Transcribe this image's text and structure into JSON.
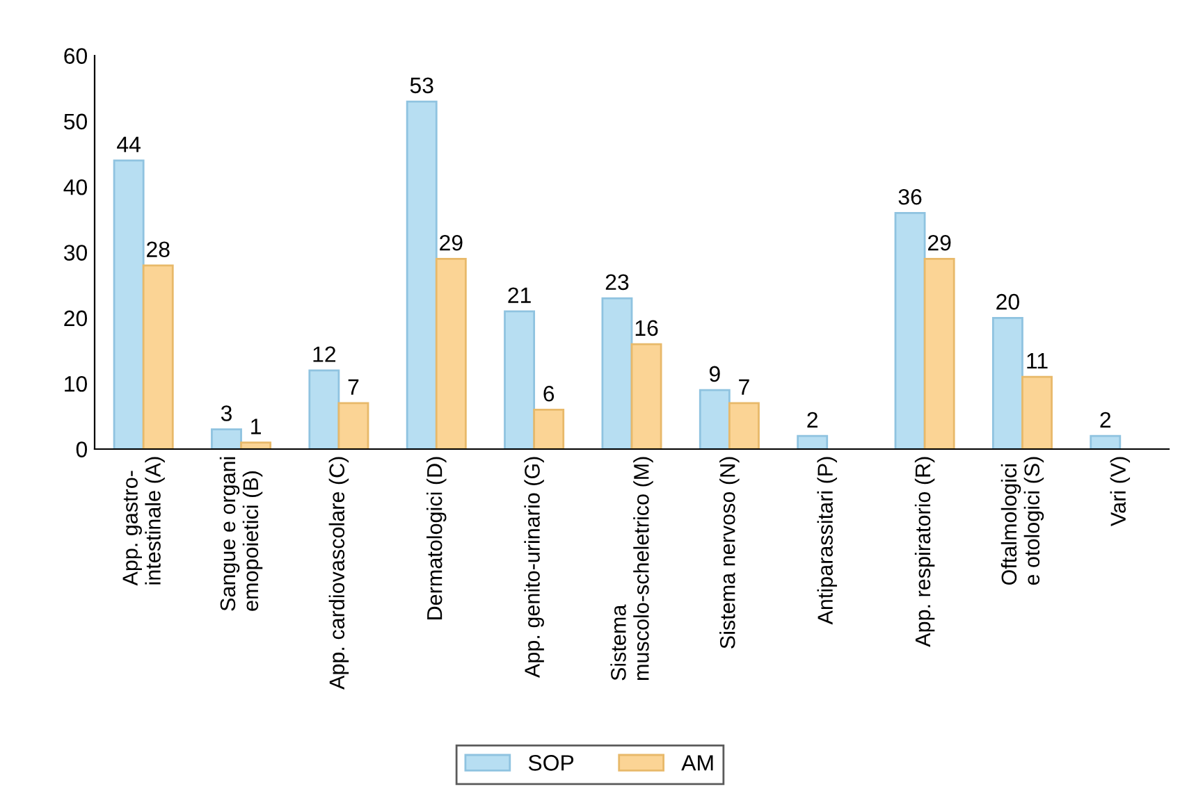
{
  "chart_data": {
    "type": "bar",
    "categories": [
      "App. gastro-\nintestinale (A)",
      "Sangue e organi\nemopoietici (B)",
      "App. cardiovascolare (C)",
      "Dermatologici (D)",
      "App. genito-urinario (G)",
      "Sistema\nmuscolo-scheletrico (M)",
      "Sistema nervoso (N)",
      "Antiparassitari (P)",
      "App. respiratorio (R)",
      "Oftalmologici\ne otologici (S)",
      "Vari (V)"
    ],
    "series": [
      {
        "name": "SOP",
        "color": "#b7def2",
        "values": [
          44,
          3,
          12,
          53,
          21,
          23,
          9,
          2,
          36,
          20,
          2
        ]
      },
      {
        "name": "AM",
        "color": "#fbd495",
        "values": [
          28,
          1,
          7,
          29,
          6,
          16,
          7,
          null,
          29,
          11,
          null
        ]
      }
    ],
    "ylim": [
      0,
      60
    ],
    "yticks": [
      0,
      10,
      20,
      30,
      40,
      50,
      60
    ],
    "grid": false,
    "legend": "bottom",
    "data_labels": true
  }
}
